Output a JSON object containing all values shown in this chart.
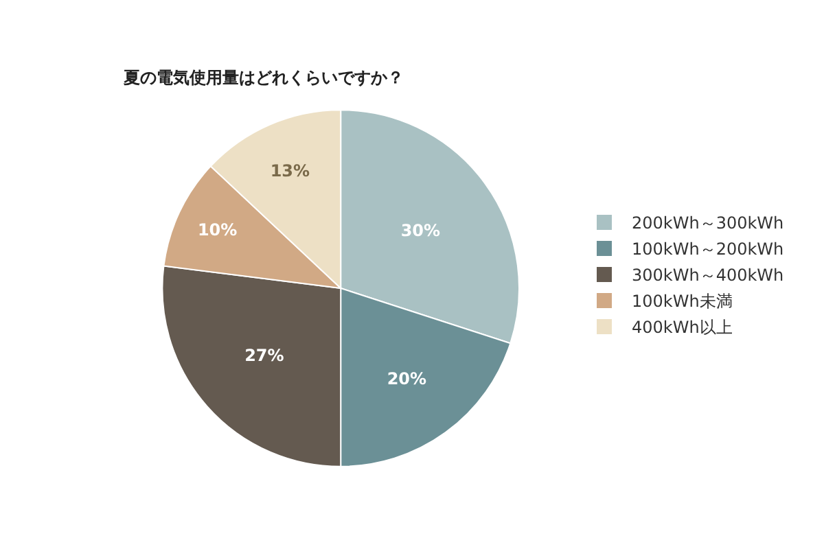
{
  "chart_data": {
    "type": "pie",
    "title": "夏の電気使用量はどれくらいですか？",
    "categories": [
      "200kWh～300kWh",
      "100kWh～200kWh",
      "300kWh～400kWh",
      "100kWh未満",
      "400kWh以上"
    ],
    "values": [
      30,
      20,
      27,
      10,
      13
    ],
    "colors": [
      "#a9c1c3",
      "#6b9096",
      "#645a50",
      "#d1a985",
      "#ede0c5"
    ],
    "value_labels": [
      "30%",
      "20%",
      "27%",
      "10%",
      "13%"
    ],
    "legend": "right"
  }
}
